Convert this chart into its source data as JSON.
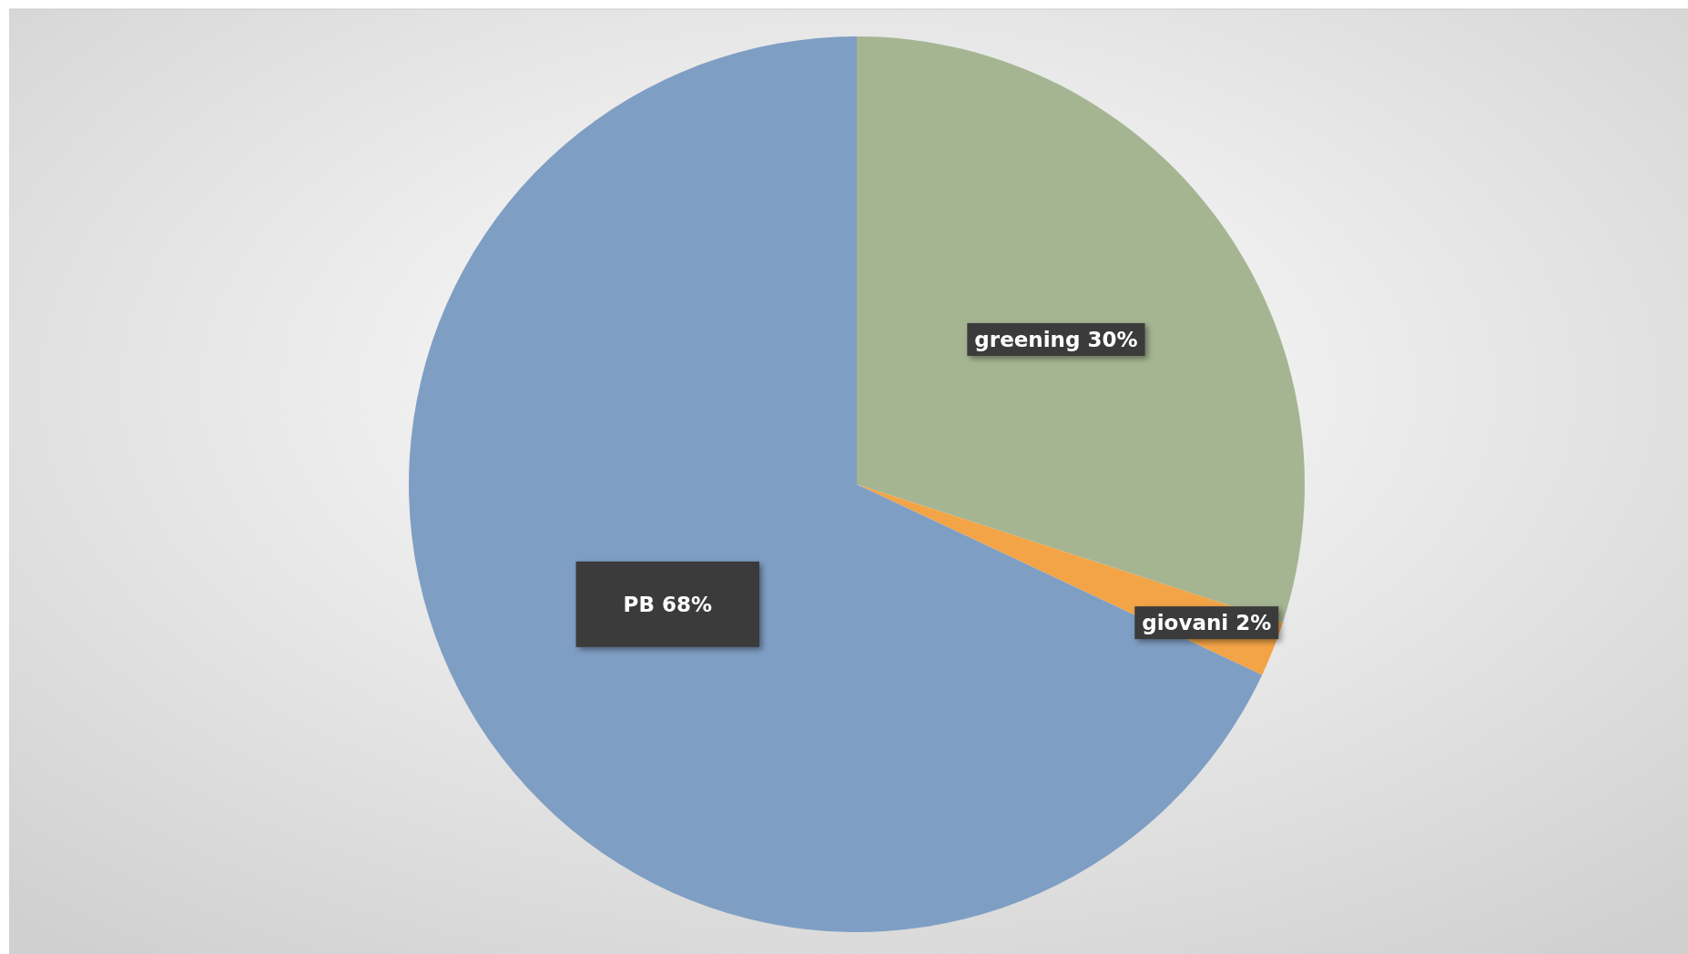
{
  "chart_data": {
    "type": "pie",
    "categories": [
      "greening",
      "giovani",
      "PB"
    ],
    "values": [
      30,
      2,
      68
    ],
    "colors": [
      "#a5b592",
      "#f3a447",
      "#7f9ec4"
    ],
    "value_labels": [
      "30%",
      "2%",
      "68%"
    ]
  }
}
